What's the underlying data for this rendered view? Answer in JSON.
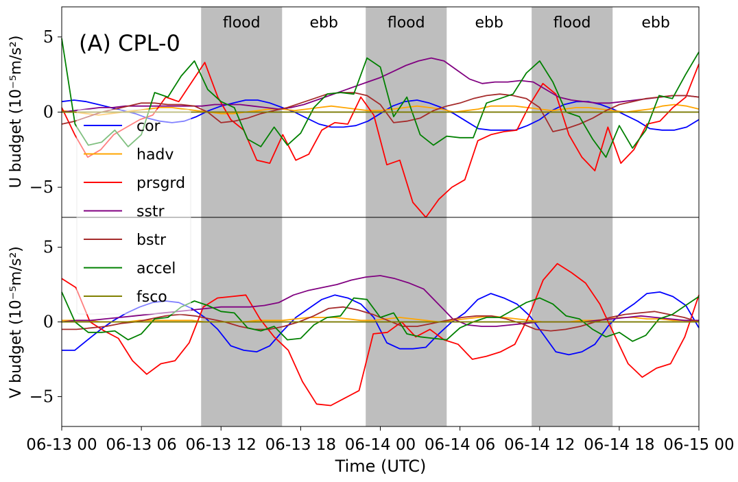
{
  "chart_data": [
    {
      "type": "line",
      "panel_label": "(A) CPL-0",
      "ylabel": "U budget (10⁻⁵m/s²)",
      "ylim": [
        -7,
        7
      ],
      "yticks": [
        -5,
        0,
        5
      ],
      "ytick_labels": [
        "−5",
        "0",
        "5"
      ],
      "series": [
        {
          "name": "cor",
          "color": "#0000ff",
          "values": [
            0.7,
            0.8,
            0.7,
            0.5,
            0.3,
            0.1,
            -0.1,
            -0.4,
            -0.6,
            -0.7,
            -0.6,
            -0.3,
            0.1,
            0.4,
            0.6,
            0.8,
            0.8,
            0.6,
            0.3,
            0.0,
            -0.4,
            -0.8,
            -1.0,
            -1.0,
            -0.9,
            -0.6,
            -0.1,
            0.4,
            0.7,
            0.8,
            0.6,
            0.3,
            -0.1,
            -0.6,
            -1.1,
            -1.2,
            -1.2,
            -1.2,
            -0.9,
            -0.5,
            0.1,
            0.5,
            0.7,
            0.7,
            0.5,
            0.2,
            -0.2,
            -0.6,
            -1.1,
            -1.2,
            -1.2,
            -1.0,
            -0.5
          ]
        },
        {
          "name": "hadv",
          "color": "#ffa500",
          "values": [
            0.1,
            0.0,
            -0.1,
            -0.2,
            -0.1,
            0.0,
            0.1,
            0.2,
            0.3,
            0.3,
            0.2,
            0.1,
            0.0,
            -0.1,
            -0.1,
            0.0,
            0.1,
            0.2,
            0.2,
            0.1,
            0.2,
            0.3,
            0.4,
            0.3,
            0.2,
            0.1,
            0.1,
            0.2,
            0.3,
            0.4,
            0.3,
            0.2,
            0.0,
            0.1,
            0.2,
            0.4,
            0.4,
            0.4,
            0.3,
            0.2,
            0.1,
            0.2,
            0.3,
            0.3,
            0.2,
            0.1,
            0.0,
            0.1,
            0.2,
            0.4,
            0.5,
            0.4,
            0.2
          ]
        },
        {
          "name": "prsgrd",
          "color": "#ff0000",
          "values": [
            0.3,
            -1.5,
            -3.0,
            -2.5,
            -1.5,
            -1.0,
            -0.5,
            -0.2,
            1.0,
            0.7,
            2.0,
            3.3,
            1.0,
            -0.5,
            -1.2,
            -3.2,
            -3.4,
            -1.5,
            -3.2,
            -2.8,
            -1.2,
            -0.7,
            -0.8,
            1.0,
            -0.2,
            -3.5,
            -3.2,
            -6.0,
            -7.0,
            -5.8,
            -5.0,
            -4.5,
            -1.9,
            -1.5,
            -1.3,
            -1.2,
            0.5,
            1.9,
            1.2,
            -1.5,
            -3.0,
            -3.9,
            -1.0,
            -3.4,
            -2.5,
            -0.8,
            -0.6,
            0.3,
            1.0,
            3.2
          ]
        },
        {
          "name": "sstr",
          "color": "#800080",
          "values": [
            0.0,
            0.1,
            0.2,
            0.3,
            0.3,
            0.4,
            0.4,
            0.4,
            0.4,
            0.4,
            0.4,
            0.4,
            0.5,
            0.5,
            0.5,
            0.4,
            0.3,
            0.2,
            0.3,
            0.5,
            0.8,
            1.1,
            1.4,
            1.7,
            2.0,
            2.3,
            2.7,
            3.1,
            3.4,
            3.6,
            3.4,
            2.8,
            2.2,
            1.9,
            2.0,
            2.0,
            2.1,
            2.0,
            1.5,
            1.0,
            0.8,
            0.7,
            0.6,
            0.6,
            0.7,
            0.8,
            0.9,
            1.0,
            1.1,
            1.1,
            1.0
          ]
        },
        {
          "name": "bstr",
          "color": "#a52a2a",
          "values": [
            -0.8,
            -0.6,
            -0.3,
            0.0,
            0.2,
            0.4,
            0.6,
            0.6,
            0.5,
            0.5,
            0.4,
            0.0,
            -0.7,
            -0.6,
            -0.4,
            -0.1,
            0.1,
            0.3,
            0.6,
            0.9,
            1.2,
            1.3,
            1.3,
            1.1,
            0.5,
            -0.7,
            -0.6,
            -0.4,
            0.1,
            0.4,
            0.6,
            0.9,
            1.1,
            1.2,
            1.1,
            0.9,
            0.3,
            -1.3,
            -1.1,
            -0.8,
            -0.4,
            0.1,
            0.5,
            0.7,
            0.9,
            1.0,
            1.1,
            1.1,
            1.0
          ]
        },
        {
          "name": "accel",
          "color": "#008000",
          "values": [
            4.9,
            -0.8,
            -2.2,
            -2.0,
            -1.2,
            -2.3,
            -1.5,
            1.3,
            1.0,
            2.4,
            3.4,
            1.5,
            0.7,
            0.3,
            -1.8,
            -2.3,
            -1.0,
            -2.2,
            -1.4,
            0.3,
            1.2,
            1.3,
            1.2,
            3.6,
            3.0,
            -0.3,
            1.0,
            -1.5,
            -2.2,
            -1.6,
            -1.7,
            -1.7,
            0.6,
            0.9,
            1.2,
            2.6,
            3.4,
            2.0,
            0.0,
            -0.3,
            -1.8,
            -3.0,
            -0.9,
            -2.4,
            -1.2,
            1.1,
            0.9,
            2.5,
            4.0
          ]
        },
        {
          "name": "fsco",
          "color": "#808000",
          "values": [
            0.0,
            0.0,
            0.0,
            0.0,
            0.0,
            0.0,
            0.0,
            0.0,
            0.0,
            0.0,
            0.0,
            0.0,
            0.0,
            0.0,
            0.0,
            0.0,
            0.0,
            0.0,
            0.0,
            0.0,
            0.0,
            0.0,
            0.0,
            0.0,
            0.0,
            0.0,
            0.0,
            0.0,
            0.0,
            0.0,
            0.0,
            0.0,
            0.0,
            0.0,
            0.0,
            0.0,
            0.0,
            0.0,
            0.0,
            0.0,
            0.0,
            0.0,
            0.0,
            0.0,
            0.0,
            0.0,
            0.0,
            0.0,
            0.0
          ]
        }
      ]
    },
    {
      "type": "line",
      "ylabel": "V budget (10⁻⁵m/s²)",
      "ylim": [
        -7,
        7
      ],
      "yticks": [
        -5,
        0,
        5
      ],
      "ytick_labels": [
        "−5",
        "0",
        "5"
      ],
      "series": [
        {
          "name": "cor",
          "color": "#0000ff",
          "values": [
            -1.9,
            -1.9,
            -1.2,
            -0.5,
            0.1,
            0.6,
            1.0,
            1.3,
            1.4,
            1.3,
            0.9,
            0.3,
            -0.5,
            -1.6,
            -1.9,
            -2.0,
            -1.6,
            -0.6,
            0.3,
            0.9,
            1.5,
            1.8,
            1.6,
            1.2,
            0.3,
            -1.4,
            -1.8,
            -1.8,
            -1.7,
            -0.8,
            0.0,
            0.6,
            1.5,
            1.9,
            1.6,
            1.2,
            0.4,
            -0.8,
            -2.0,
            -2.2,
            -2.0,
            -1.5,
            -0.3,
            0.6,
            1.2,
            1.9,
            2.0,
            1.7,
            1.1,
            -0.4
          ]
        },
        {
          "name": "hadv",
          "color": "#ffa500",
          "values": [
            0.1,
            0.1,
            0.1,
            0.0,
            0.0,
            0.0,
            0.1,
            0.1,
            0.1,
            0.1,
            0.1,
            0.0,
            0.0,
            0.0,
            0.0,
            0.1,
            0.1,
            0.1,
            0.2,
            0.3,
            0.3,
            0.3,
            0.2,
            0.1,
            0.1,
            0.2,
            0.3,
            0.2,
            0.1,
            0.0,
            0.1,
            0.2,
            0.3,
            0.4,
            0.3,
            0.2,
            0.1,
            0.0,
            0.0,
            0.0,
            0.1,
            0.1,
            0.2,
            0.3,
            0.3,
            0.2,
            0.2,
            0.1,
            0.1,
            0.0
          ]
        },
        {
          "name": "prsgrd",
          "color": "#ff0000",
          "values": [
            2.9,
            2.3,
            0.0,
            -0.6,
            -1.1,
            -2.6,
            -3.5,
            -2.8,
            -2.6,
            -1.4,
            1.0,
            1.6,
            1.7,
            1.8,
            0.2,
            -1.0,
            -1.9,
            -4.0,
            -5.5,
            -5.6,
            -5.1,
            -4.6,
            -0.8,
            -0.7,
            0.0,
            -1.0,
            -0.5,
            -1.2,
            -1.5,
            -2.5,
            -2.3,
            -2.0,
            -1.5,
            0.4,
            2.8,
            3.9,
            3.3,
            2.6,
            1.2,
            -0.8,
            -2.8,
            -3.7,
            -3.1,
            -2.8,
            -1.0,
            1.8
          ]
        },
        {
          "name": "sstr",
          "color": "#800080",
          "values": [
            0.0,
            0.1,
            0.1,
            0.2,
            0.3,
            0.4,
            0.5,
            0.6,
            0.7,
            0.8,
            0.9,
            1.0,
            1.0,
            1.0,
            1.1,
            1.3,
            1.8,
            2.1,
            2.3,
            2.5,
            2.8,
            3.0,
            3.1,
            2.9,
            2.6,
            2.2,
            1.2,
            0.2,
            -0.2,
            -0.3,
            -0.3,
            -0.2,
            -0.1,
            0.0,
            0.0,
            0.0,
            0.0,
            0.1,
            0.2,
            0.3,
            0.4,
            0.3,
            0.2,
            0.1,
            0.1
          ]
        },
        {
          "name": "bstr",
          "color": "#a52a2a",
          "values": [
            -0.5,
            -0.5,
            -0.4,
            -0.3,
            -0.1,
            0.0,
            0.2,
            0.4,
            0.5,
            0.4,
            0.2,
            0.0,
            -0.3,
            -0.5,
            -0.5,
            -0.3,
            0.0,
            0.4,
            0.9,
            1.0,
            0.8,
            0.5,
            0.1,
            -0.3,
            -0.3,
            -0.1,
            0.1,
            0.3,
            0.4,
            0.4,
            0.2,
            -0.1,
            -0.5,
            -0.6,
            -0.5,
            -0.3,
            0.0,
            0.3,
            0.5,
            0.6,
            0.7,
            0.5,
            0.3,
            0.0
          ]
        },
        {
          "name": "accel",
          "color": "#008000",
          "values": [
            2.0,
            0.0,
            -0.7,
            -0.7,
            -0.6,
            -1.2,
            -0.8,
            0.2,
            0.3,
            1.0,
            1.4,
            1.1,
            0.7,
            0.6,
            -0.4,
            -0.6,
            -0.3,
            -1.2,
            -1.1,
            -0.2,
            0.3,
            0.4,
            1.6,
            1.5,
            0.3,
            0.6,
            -0.8,
            -1.0,
            -1.1,
            -1.2,
            -0.4,
            0.0,
            0.3,
            0.3,
            0.8,
            1.3,
            1.6,
            1.2,
            0.4,
            0.2,
            -0.5,
            -1.0,
            -0.7,
            -1.3,
            -0.9,
            0.2,
            0.5,
            1.1,
            1.7
          ]
        },
        {
          "name": "fsco",
          "color": "#808000",
          "values": [
            0.0,
            0.0,
            0.0,
            0.0,
            0.0,
            0.0,
            0.0,
            0.0,
            0.0,
            0.0,
            0.0,
            0.0,
            0.0,
            0.0,
            0.0,
            0.0,
            0.0,
            0.0,
            0.0,
            0.0,
            0.0,
            0.0,
            0.0,
            0.0,
            0.0,
            0.0,
            0.0,
            0.0,
            0.0,
            0.0,
            0.0,
            0.0,
            0.0,
            0.0,
            0.0,
            0.0,
            0.0,
            0.0,
            0.0,
            0.0,
            0.0,
            0.0,
            0.0,
            0.0,
            0.0
          ]
        }
      ]
    }
  ],
  "xaxis": {
    "label": "Time (UTC)",
    "range_hours": [
      0,
      48
    ],
    "ticks": [
      0,
      6,
      12,
      18,
      24,
      30,
      36,
      42,
      48
    ],
    "tick_labels": [
      "06-13 00",
      "06-13 06",
      "06-13 12",
      "06-13 18",
      "06-14 00",
      "06-14 06",
      "06-14 12",
      "06-14 18",
      "06-15 00"
    ]
  },
  "tide_phases": [
    {
      "label": "flood",
      "start_hour": 10.5,
      "end_hour": 16.6,
      "shaded": true
    },
    {
      "label": "ebb",
      "start_hour": 16.6,
      "end_hour": 22.9,
      "shaded": false
    },
    {
      "label": "flood",
      "start_hour": 22.9,
      "end_hour": 29.0,
      "shaded": true
    },
    {
      "label": "ebb",
      "start_hour": 29.0,
      "end_hour": 35.4,
      "shaded": false
    },
    {
      "label": "flood",
      "start_hour": 35.4,
      "end_hour": 41.5,
      "shaded": true
    },
    {
      "label": "ebb",
      "start_hour": 41.5,
      "end_hour": 48.0,
      "shaded": false
    }
  ],
  "legend": {
    "placement": "left",
    "entries": [
      {
        "name": "cor",
        "color": "#0000ff"
      },
      {
        "name": "hadv",
        "color": "#ffa500"
      },
      {
        "name": "prsgrd",
        "color": "#ff0000"
      },
      {
        "name": "sstr",
        "color": "#800080"
      },
      {
        "name": "bstr",
        "color": "#a52a2a"
      },
      {
        "name": "accel",
        "color": "#008000"
      },
      {
        "name": "fsco",
        "color": "#808000"
      }
    ]
  }
}
